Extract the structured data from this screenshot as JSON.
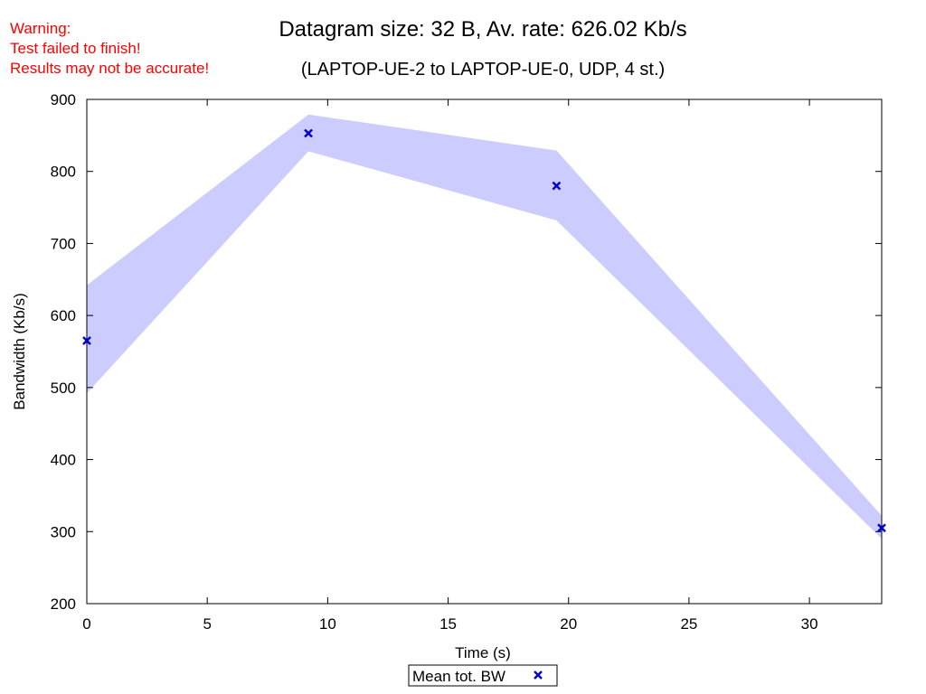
{
  "warning": {
    "lines": [
      "Warning:",
      "Test failed to finish!",
      "Results may not be accurate!"
    ],
    "color": "#ff0000"
  },
  "chart_data": {
    "type": "area",
    "title": "Datagram size: 32 B, Av. rate: 626.02 Kb/s",
    "subtitle": "(LAPTOP-UE-2 to LAPTOP-UE-0, UDP, 4 st.)",
    "xlabel": "Time (s)",
    "ylabel": "Bandwidth (Kb/s)",
    "xlim": [
      0,
      33
    ],
    "ylim": [
      200,
      900
    ],
    "x_ticks": [
      0,
      5,
      10,
      15,
      20,
      25,
      30
    ],
    "y_ticks": [
      200,
      300,
      400,
      500,
      600,
      700,
      800,
      900
    ],
    "grid": false,
    "legend": {
      "position": "bottom-center",
      "label": "Mean tot. BW"
    },
    "band": {
      "x": [
        0,
        9.2,
        19.5,
        33
      ],
      "lower": [
        492,
        828,
        732,
        290
      ],
      "upper": [
        642,
        879,
        829,
        322
      ],
      "color": "#ccccff"
    },
    "series": [
      {
        "name": "Mean tot. BW",
        "marker": "x",
        "color": "#0000d0",
        "x": [
          0,
          9.2,
          19.5,
          33
        ],
        "y": [
          565,
          853,
          780,
          305
        ]
      }
    ]
  }
}
